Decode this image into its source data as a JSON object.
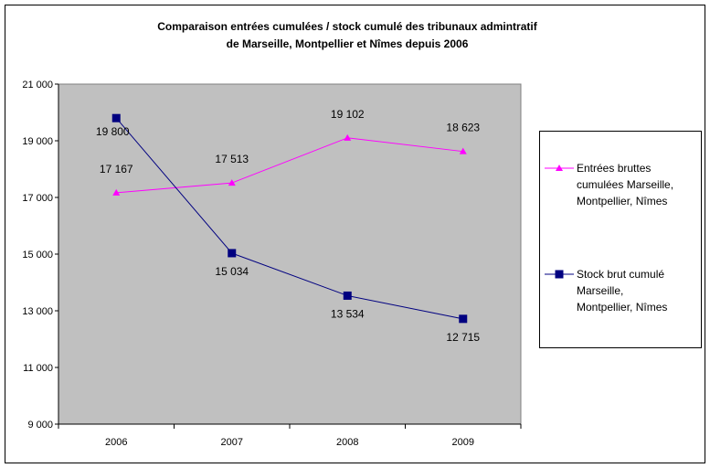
{
  "chart_data": {
    "type": "line",
    "title": "Comparaison entrées cumulées / stock cumulé des tribunaux  admintratif",
    "subtitle": "de Marseille, Montpellier et Nîmes depuis 2006",
    "categories": [
      "2006",
      "2007",
      "2008",
      "2009"
    ],
    "ylim": [
      9000,
      21000
    ],
    "yticks": [
      9000,
      11000,
      13000,
      15000,
      17000,
      19000,
      21000
    ],
    "ytick_labels": [
      "9 000",
      "11 000",
      "13 000",
      "15 000",
      "17 000",
      "19 000",
      "21 000"
    ],
    "grid": false,
    "plot_background": "#c0c0c0",
    "legend_position": "right",
    "series": [
      {
        "name": "Entrées bruttes cumulées Marseille, Montpellier, Nîmes",
        "legend_lines": [
          "Entrées bruttes",
          "cumulées Marseille,",
          "Montpellier, Nîmes"
        ],
        "values": [
          17167,
          17513,
          19102,
          18623
        ],
        "labels": [
          "17 167",
          "17 513",
          "19 102",
          "18 623"
        ],
        "color": "#ff00ff",
        "marker": "triangle"
      },
      {
        "name": "Stock brut cumulé Marseille, Montpellier, Nîmes",
        "legend_lines": [
          "Stock brut cumulé",
          "Marseille,",
          "Montpellier, Nîmes"
        ],
        "values": [
          19800,
          15034,
          13534,
          12715
        ],
        "labels": [
          "19 800",
          "15 034",
          "13 534",
          "12 715"
        ],
        "color": "#000080",
        "marker": "square"
      }
    ]
  }
}
